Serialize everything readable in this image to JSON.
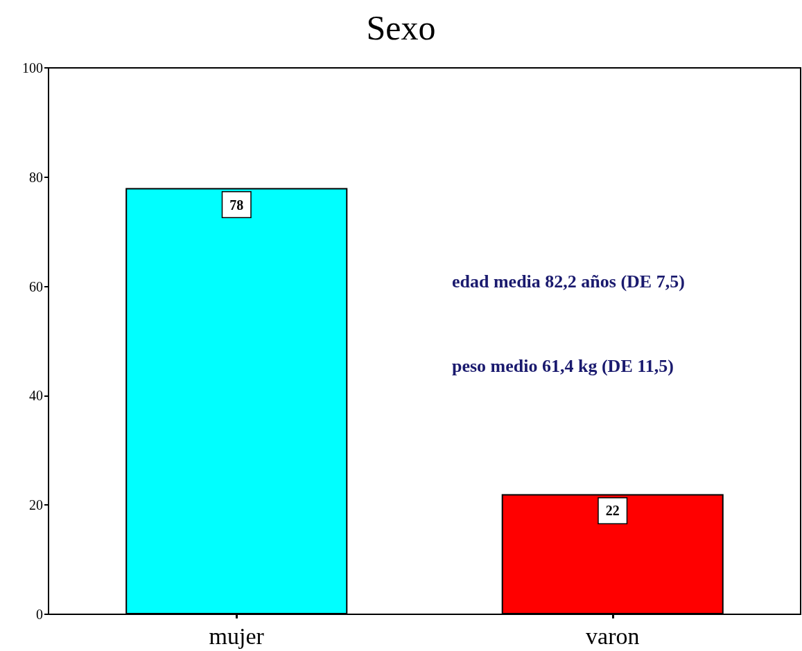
{
  "chart_data": {
    "type": "bar",
    "title": "Sexo",
    "categories": [
      "mujer",
      "varon"
    ],
    "values": [
      78,
      22
    ],
    "colors": [
      "#00ffff",
      "#ff0000"
    ],
    "ylim": [
      0,
      100
    ],
    "yticks": [
      0,
      20,
      40,
      60,
      80,
      100
    ],
    "grid": false,
    "data_labels": true,
    "annotations": [
      "edad media 82,2 años (DE 7,5)",
      "peso medio 61,4 kg (DE 11,5)"
    ]
  }
}
